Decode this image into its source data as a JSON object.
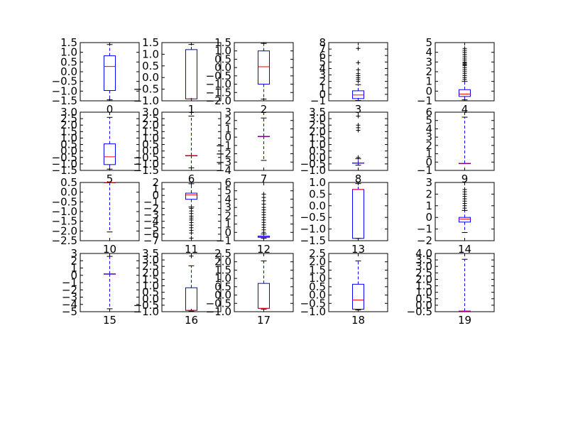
{
  "figure": {
    "background": "#ffffff",
    "box_color": "#0000ff",
    "median_color": "#ff0000",
    "whisker_color": "#0000ff",
    "flier_marker": "+"
  },
  "chart_data": [
    {
      "type": "box",
      "xlabel": "0",
      "ylim": [
        -1.5,
        1.5
      ],
      "yticks": [
        -1.5,
        -1.0,
        -0.5,
        0.0,
        0.5,
        1.0,
        1.5
      ],
      "ytick_labels": [
        "−1.5",
        "−1.0",
        "−0.5",
        "0.0",
        "0.5",
        "1.0",
        "1.5"
      ],
      "box": {
        "whislo": -1.45,
        "q1": -0.97,
        "med": 0.27,
        "q3": 0.82,
        "whishi": 1.4
      },
      "fliers": []
    },
    {
      "type": "box",
      "xlabel": "1",
      "ylim": [
        -1.0,
        1.5
      ],
      "yticks": [
        -1.0,
        -0.5,
        0.0,
        0.5,
        1.0,
        1.5
      ],
      "ytick_labels": [
        "−1.0",
        "−0.5",
        "0.0",
        "0.5",
        "1.0",
        "1.5"
      ],
      "box": {
        "whislo": -0.92,
        "q1": -0.92,
        "med": -0.92,
        "q3": 1.2,
        "whishi": 1.42
      },
      "fliers": []
    },
    {
      "type": "box",
      "xlabel": "2",
      "ylim": [
        -2.0,
        1.5
      ],
      "yticks": [
        -2.0,
        -1.5,
        -1.0,
        -0.5,
        0.0,
        0.5,
        1.0,
        1.5
      ],
      "ytick_labels": [
        "−2.0",
        "−1.5",
        "−1.0",
        "−0.5",
        "0.0",
        "0.5",
        "1.0",
        "1.5"
      ],
      "box": {
        "whislo": -1.9,
        "q1": -1.0,
        "med": 0.05,
        "q3": 1.0,
        "whishi": 1.45
      },
      "fliers": []
    },
    {
      "type": "box",
      "xlabel": "3",
      "ylim": [
        -1,
        8
      ],
      "yticks": [
        -1,
        0,
        1,
        2,
        3,
        4,
        5,
        6,
        7,
        8
      ],
      "ytick_labels": [
        "−1",
        "0",
        "1",
        "2",
        "3",
        "4",
        "5",
        "6",
        "7",
        "8"
      ],
      "box": {
        "whislo": -0.95,
        "q1": -0.65,
        "med": -0.1,
        "q3": 0.55,
        "whishi": 1.5
      },
      "fliers": [
        2.0,
        2.3,
        2.6,
        2.9,
        3.2,
        3.8,
        4.9,
        7.1
      ]
    },
    {
      "type": "box",
      "xlabel": "4",
      "ylim": [
        -1,
        5
      ],
      "yticks": [
        -1,
        0,
        1,
        2,
        3,
        4,
        5
      ],
      "ytick_labels": [
        "−1",
        "0",
        "1",
        "2",
        "3",
        "4",
        "5"
      ],
      "box": {
        "whislo": -0.9,
        "q1": -0.55,
        "med": -0.3,
        "q3": 0.15,
        "whishi": 1.0
      },
      "fliers": [
        1.2,
        1.4,
        1.6,
        1.8,
        2.0,
        2.2,
        2.4,
        2.6,
        2.7,
        2.8,
        2.9,
        3.0,
        3.2,
        3.4,
        3.6,
        3.8,
        4.0,
        4.2,
        4.4
      ]
    },
    {
      "type": "box",
      "xlabel": "5",
      "ylim": [
        -1.5,
        3.0
      ],
      "yticks": [
        -1.5,
        -1.0,
        -0.5,
        0.0,
        0.5,
        1.0,
        1.5,
        2.0,
        2.5,
        3.0
      ],
      "ytick_labels": [
        "−1.5",
        "−1.0",
        "−0.5",
        "0.0",
        "0.5",
        "1.0",
        "1.5",
        "2.0",
        "2.5",
        "3.0"
      ],
      "box": {
        "whislo": -1.4,
        "q1": -1.05,
        "med": -0.45,
        "q3": 0.55,
        "whishi": 2.6
      },
      "fliers": []
    },
    {
      "type": "box",
      "xlabel": "6",
      "ylim": [
        -1.5,
        3.0
      ],
      "yticks": [
        -1.5,
        -1.0,
        -0.5,
        0.0,
        0.5,
        1.0,
        1.5,
        2.0,
        2.5,
        3.0
      ],
      "ytick_labels": [
        "−1.5",
        "−1.0",
        "−0.5",
        "0.0",
        "0.5",
        "1.0",
        "1.5",
        "2.0",
        "2.5",
        "3.0"
      ],
      "box": {
        "whislo": -1.3,
        "q1": -0.35,
        "med": -0.35,
        "q3": -0.35,
        "whishi": 2.7
      },
      "fliers": []
    },
    {
      "type": "box",
      "xlabel": "7",
      "ylim": [
        -4,
        3
      ],
      "yticks": [
        -4,
        -3,
        -2,
        -1,
        0,
        1,
        2,
        3
      ],
      "ytick_labels": [
        "−4",
        "−3",
        "−2",
        "−1",
        "0",
        "1",
        "2",
        "3"
      ],
      "box": {
        "whislo": -2.8,
        "q1": 0.1,
        "med": 0.1,
        "q3": 0.1,
        "whishi": 2.3
      },
      "fliers": []
    },
    {
      "type": "box",
      "xlabel": "8",
      "ylim": [
        -1.0,
        3.5
      ],
      "yticks": [
        -1.0,
        -0.5,
        0.0,
        0.5,
        1.0,
        1.5,
        2.0,
        2.5,
        3.0,
        3.5
      ],
      "ytick_labels": [
        "−1.0",
        "−0.5",
        "0.0",
        "0.5",
        "1.0",
        "1.5",
        "2.0",
        "2.5",
        "3.0",
        "3.5"
      ],
      "box": {
        "whislo": -0.6,
        "q1": -0.42,
        "med": -0.42,
        "q3": -0.42,
        "whishi": -0.1
      },
      "fliers": [
        0.0,
        2.1,
        2.3,
        2.5,
        3.2
      ]
    },
    {
      "type": "box",
      "xlabel": "9",
      "ylim": [
        -1,
        6
      ],
      "yticks": [
        -1,
        0,
        1,
        2,
        3,
        4,
        5,
        6
      ],
      "ytick_labels": [
        "−1",
        "0",
        "1",
        "2",
        "3",
        "4",
        "5",
        "6"
      ],
      "box": {
        "whislo": -0.15,
        "q1": -0.15,
        "med": -0.15,
        "q3": -0.15,
        "whishi": 5.4
      },
      "fliers": []
    },
    {
      "type": "box",
      "xlabel": "10",
      "ylim": [
        -2.5,
        0.5
      ],
      "yticks": [
        -2.5,
        -2.0,
        -1.5,
        -1.0,
        -0.5,
        0.0,
        0.5
      ],
      "ytick_labels": [
        "−2.5",
        "−2.0",
        "−1.5",
        "−1.0",
        "−0.5",
        "0.0",
        "0.5"
      ],
      "box": {
        "whislo": -2.05,
        "q1": 0.5,
        "med": 0.5,
        "q3": 0.5,
        "whishi": 0.5
      },
      "fliers": []
    },
    {
      "type": "box",
      "xlabel": "11",
      "ylim": [
        -7,
        2
      ],
      "yticks": [
        -7,
        -6,
        -5,
        -4,
        -3,
        -2,
        -1,
        0,
        1,
        2
      ],
      "ytick_labels": [
        "−7",
        "−6",
        "−5",
        "−4",
        "−3",
        "−2",
        "−1",
        "0",
        "1",
        "2"
      ],
      "box": {
        "whislo": -1.8,
        "q1": -0.6,
        "med": 0.1,
        "q3": 0.35,
        "whishi": 1.8
      },
      "fliers": [
        -2.0,
        -2.4,
        -2.8,
        -3.2,
        -3.5,
        -3.8,
        -4.2,
        -4.6,
        -5.0,
        -5.4,
        -5.8,
        -6.6
      ]
    },
    {
      "type": "box",
      "xlabel": "12",
      "ylim": [
        -1,
        6
      ],
      "yticks": [
        -1,
        0,
        1,
        2,
        3,
        4,
        5,
        6
      ],
      "ytick_labels": [
        "−1",
        "0",
        "1",
        "2",
        "3",
        "4",
        "5",
        "6"
      ],
      "box": {
        "whislo": -0.7,
        "q1": -0.6,
        "med": -0.55,
        "q3": -0.45,
        "whishi": -0.2
      },
      "fliers": [
        0.0,
        0.3,
        0.6,
        0.9,
        1.2,
        1.5,
        1.8,
        2.1,
        2.4,
        2.7,
        3.0,
        3.4,
        3.8,
        4.2,
        4.6
      ]
    },
    {
      "type": "box",
      "xlabel": "13",
      "ylim": [
        -1.5,
        1.0
      ],
      "yticks": [
        -1.5,
        -1.0,
        -0.5,
        0.0,
        0.5,
        1.0
      ],
      "ytick_labels": [
        "−1.5",
        "−1.0",
        "−0.5",
        "0.0",
        "0.5",
        "1.0"
      ],
      "box": {
        "whislo": -1.4,
        "q1": -1.4,
        "med": 0.7,
        "q3": 0.7,
        "whishi": 0.95
      },
      "fliers": []
    },
    {
      "type": "box",
      "xlabel": "14",
      "ylim": [
        -2,
        3
      ],
      "yticks": [
        -2,
        -1,
        0,
        1,
        2,
        3
      ],
      "ytick_labels": [
        "−2",
        "−1",
        "0",
        "1",
        "2",
        "3"
      ],
      "box": {
        "whislo": -1.3,
        "q1": -0.4,
        "med": -0.15,
        "q3": 0.0,
        "whishi": 0.6
      },
      "fliers": [
        0.8,
        1.0,
        1.2,
        1.4,
        1.6,
        1.8,
        2.0,
        2.2,
        2.4
      ]
    },
    {
      "type": "box",
      "xlabel": "15",
      "ylim": [
        -5,
        3
      ],
      "yticks": [
        -5,
        -4,
        -3,
        -2,
        -1,
        0,
        1,
        2,
        3
      ],
      "ytick_labels": [
        "−5",
        "−4",
        "−3",
        "−2",
        "−1",
        "0",
        "1",
        "2",
        "3"
      ],
      "box": {
        "whislo": -4.6,
        "q1": 0.2,
        "med": 0.2,
        "q3": 0.2,
        "whishi": 2.6
      },
      "fliers": []
    },
    {
      "type": "box",
      "xlabel": "16",
      "ylim": [
        -1.0,
        3.5
      ],
      "yticks": [
        -1.0,
        -0.5,
        0.0,
        0.5,
        1.0,
        1.5,
        2.0,
        2.5,
        3.0,
        3.5
      ],
      "ytick_labels": [
        "−1.0",
        "−0.5",
        "0.0",
        "0.5",
        "1.0",
        "1.5",
        "2.0",
        "2.5",
        "3.0",
        "3.5"
      ],
      "box": {
        "whislo": -0.95,
        "q1": -0.9,
        "med": -0.9,
        "q3": 0.85,
        "whishi": 2.55
      },
      "fliers": [
        3.3
      ]
    },
    {
      "type": "box",
      "xlabel": "17",
      "ylim": [
        -1.0,
        2.5
      ],
      "yticks": [
        -1.0,
        -0.5,
        0.0,
        0.5,
        1.0,
        1.5,
        2.0,
        2.5
      ],
      "ytick_labels": [
        "−1.0",
        "−0.5",
        "0.0",
        "0.5",
        "1.0",
        "1.5",
        "2.0",
        "2.5"
      ],
      "box": {
        "whislo": -0.85,
        "q1": -0.8,
        "med": -0.8,
        "q3": 0.7,
        "whishi": 2.05
      },
      "fliers": []
    },
    {
      "type": "box",
      "xlabel": "18",
      "ylim": [
        -1.0,
        2.5
      ],
      "yticks": [
        -1.0,
        -0.5,
        0.0,
        0.5,
        1.0,
        1.5,
        2.0,
        2.5
      ],
      "ytick_labels": [
        "−1.0",
        "−0.5",
        "0.0",
        "0.5",
        "1.0",
        "1.5",
        "2.0",
        "2.5"
      ],
      "box": {
        "whislo": -0.9,
        "q1": -0.85,
        "med": -0.3,
        "q3": 0.65,
        "whishi": 2.05
      },
      "fliers": []
    },
    {
      "type": "box",
      "xlabel": "19",
      "ylim": [
        -0.5,
        4.0
      ],
      "yticks": [
        -0.5,
        0.0,
        0.5,
        1.0,
        1.5,
        2.0,
        2.5,
        3.0,
        3.5,
        4.0
      ],
      "ytick_labels": [
        "−0.5",
        "0.0",
        "0.5",
        "1.0",
        "1.5",
        "2.0",
        "2.5",
        "3.0",
        "3.5",
        "4.0"
      ],
      "box": {
        "whislo": -0.45,
        "q1": -0.45,
        "med": -0.45,
        "q3": -0.45,
        "whishi": 3.55
      },
      "fliers": []
    }
  ]
}
